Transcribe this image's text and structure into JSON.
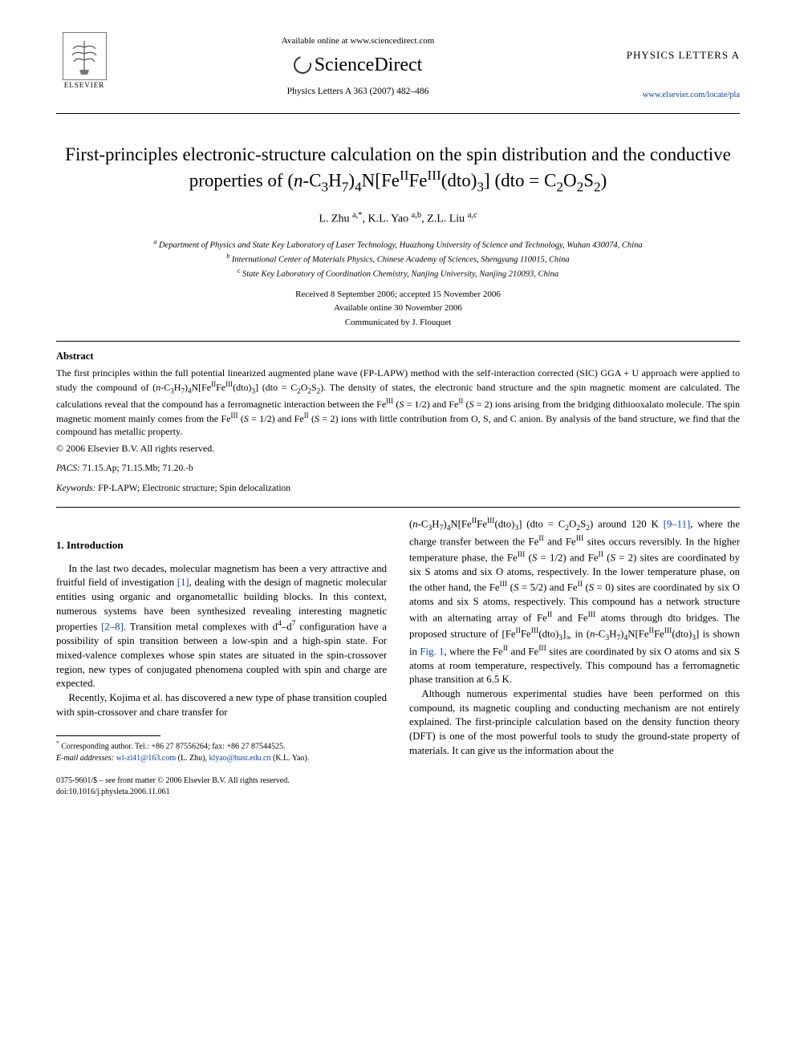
{
  "header": {
    "available_text": "Available online at www.sciencedirect.com",
    "sciencedirect": "ScienceDirect",
    "journal_ref": "Physics Letters A 363 (2007) 482–486",
    "journal_name": "PHYSICS LETTERS A",
    "locate_url": "www.elsevier.com/locate/pla",
    "publisher": "ELSEVIER"
  },
  "title_html": "First-principles electronic-structure calculation on the spin distribution and the conductive properties of (<i>n</i>-C<sub>3</sub>H<sub>7</sub>)<sub>4</sub>N[Fe<sup>II</sup>Fe<sup>III</sup>(dto)<sub>3</sub>] (dto = C<sub>2</sub>O<sub>2</sub>S<sub>2</sub>)",
  "authors_html": "L. Zhu <sup>a,*</sup>, K.L. Yao <sup>a,b</sup>, Z.L. Liu <sup>a,c</sup>",
  "affiliations": [
    "<sup>a</sup> Department of Physics and State Key Laboratory of Laser Technology, Huazhong University of Science and Technology, Wuhan 430074, China",
    "<sup>b</sup> International Center of Materials Physics, Chinese Academy of Sciences, Shengyang 110015, China",
    "<sup>c</sup> State Key Laboratory of Coordination Chemistry, Nanjing University, Nanjing 210093, China"
  ],
  "dates": {
    "received": "Received 8 September 2006; accepted 15 November 2006",
    "online": "Available online 30 November 2006",
    "communicated": "Communicated by J. Flouquet"
  },
  "abstract": {
    "heading": "Abstract",
    "text_html": "The first principles within the full potential linearized augmented plane wave (FP-LAPW) method with the self-interaction corrected (SIC) GGA + U approach were applied to study the compound of (<i>n</i>-C<sub>3</sub>H<sub>7</sub>)<sub>4</sub>N[Fe<sup>II</sup>Fe<sup>III</sup>(dto)<sub>3</sub>] (dto = C<sub>2</sub>O<sub>2</sub>S<sub>2</sub>). The density of states, the electronic band structure and the spin magnetic moment are calculated. The calculations reveal that the compound has a ferromagnetic interaction between the Fe<sup>III</sup> (<i>S</i> = 1/2) and Fe<sup>II</sup> (<i>S</i> = 2) ions arising from the bridging dithiooxalato molecule. The spin magnetic moment mainly comes from the Fe<sup>III</sup> (<i>S</i> = 1/2) and Fe<sup>II</sup> (<i>S</i> = 2) ions with little contribution from O, S, and C anion. By analysis of the band structure, we find that the compound has metallic property.",
    "copyright": "© 2006 Elsevier B.V. All rights reserved."
  },
  "pacs": {
    "label": "PACS:",
    "value": "71.15.Ap; 71.15.Mb; 71.20.-b"
  },
  "keywords": {
    "label": "Keywords:",
    "value": "FP-LAPW; Electronic structure; Spin delocalization"
  },
  "section1": {
    "heading": "1. Introduction",
    "para1_html": "In the last two decades, molecular magnetism has been a very attractive and fruitful field of investigation <span class=\"ref-link\">[1]</span>, dealing with the design of magnetic molecular entities using organic and organometallic building blocks. In this context, numerous systems have been synthesized revealing interesting magnetic properties <span class=\"ref-link\">[2–8]</span>. Transition metal complexes with d<sup>4</sup>–d<sup>7</sup> configuration have a possibility of spin transition between a low-spin and a high-spin state. For mixed-valence complexes whose spin states are situated in the spin-crossover region, new types of conjugated phenomena coupled with spin and charge are expected.",
    "para2_html": "Recently, Kojima et al. has discovered a new type of phase transition coupled with spin-crossover and chare transfer for",
    "para3_html": "(<i>n</i>-C<sub>3</sub>H<sub>7</sub>)<sub>4</sub>N[Fe<sup>II</sup>Fe<sup>III</sup>(dto)<sub>3</sub>] (dto = C<sub>2</sub>O<sub>2</sub>S<sub>2</sub>) around 120 K <span class=\"ref-link\">[9–11]</span>, where the charge transfer between the Fe<sup>II</sup> and Fe<sup>III</sup> sites occurs reversibly. In the higher temperature phase, the Fe<sup>III</sup> (<i>S</i> = 1/2) and Fe<sup>II</sup> (<i>S</i> = 2) sites are coordinated by six S atoms and six O atoms, respectively. In the lower temperature phase, on the other hand, the Fe<sup>III</sup> (<i>S</i> = 5/2) and Fe<sup>II</sup> (<i>S</i> = 0) sites are coordinated by six O atoms and six S atoms, respectively. This compound has a network structure with an alternating array of Fe<sup>II</sup> and Fe<sup>III</sup> atoms through dto bridges. The proposed structure of [Fe<sup>II</sup>Fe<sup>III</sup>(dto)<sub>3</sub>]<sub>∞</sub> in (<i>n</i>-C<sub>3</sub>H<sub>7</sub>)<sub>4</sub>N[Fe<sup>II</sup>Fe<sup>III</sup>(dto)<sub>3</sub>] is shown in <span class=\"ref-link\">Fig. 1</span>, where the Fe<sup>II</sup> and Fe<sup>III</sup> sites are coordinated by six O atoms and six S atoms at room temperature, respectively. This compound has a ferromagnetic phase transition at 6.5 K.",
    "para4_html": "Although numerous experimental studies have been performed on this compound, its magnetic coupling and conducting mechanism are not entirely explained. The first-principle calculation based on the density function theory (DFT) is one of the most powerful tools to study the ground-state property of materials. It can give us the information about the"
  },
  "footnote": {
    "corr_html": "<sup>*</sup> Corresponding author. Tel.: +86 27 87556264; fax: +86 27 87544525.",
    "email_html": "<i>E-mail addresses:</i> <span class=\"ref-link\">wl-zl41@163.com</span> (L. Zhu), <span class=\"ref-link\">klyao@hust.edu.cn</span> (K.L. Yao)."
  },
  "footer": {
    "line1": "0375-9601/$ – see front matter © 2006 Elsevier B.V. All rights reserved.",
    "line2": "doi:10.1016/j.physleta.2006.11.061"
  },
  "colors": {
    "link": "#0a3fb3",
    "text": "#000000",
    "background": "#ffffff"
  }
}
